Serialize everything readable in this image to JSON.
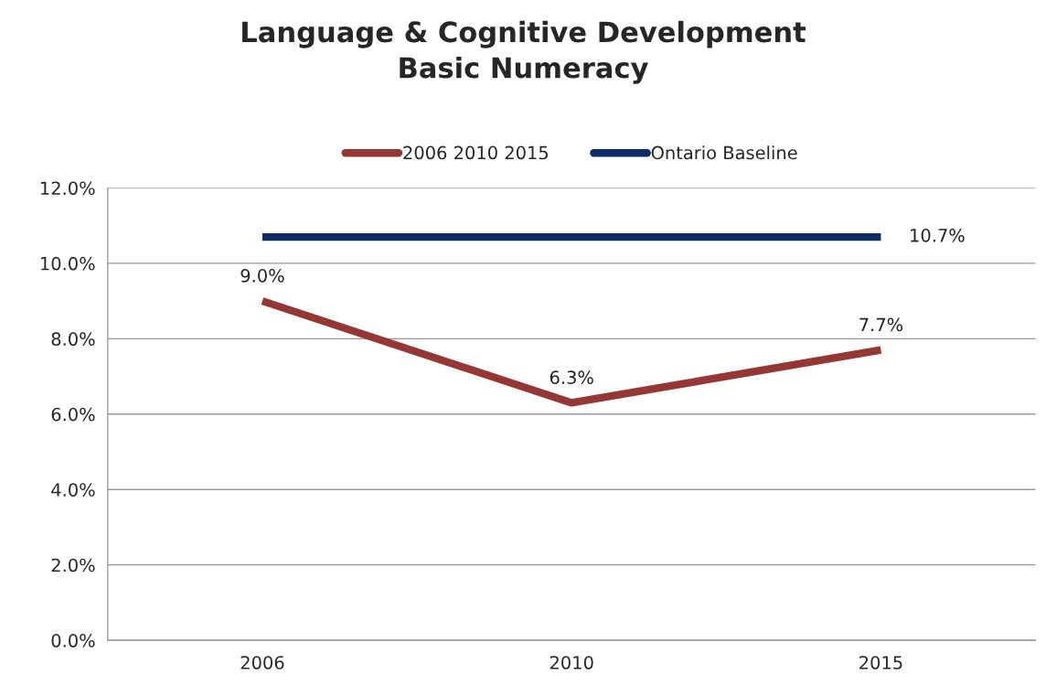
{
  "chart_data": {
    "type": "line",
    "title": "Language & Cognitive Development\nBasic Numeracy",
    "categories": [
      "2006",
      "2010",
      "2015"
    ],
    "series": [
      {
        "name": "2006 2010 2015",
        "color": "#953735",
        "values": [
          9.0,
          6.3,
          7.7
        ],
        "value_labels": [
          "9.0%",
          "6.3%",
          "7.7%"
        ]
      },
      {
        "name": "Ontario Baseline",
        "color": "#0e2c6a",
        "values": [
          10.7,
          10.7,
          10.7
        ],
        "value_labels": [
          null,
          null,
          "10.7%"
        ]
      }
    ],
    "ylim": [
      0,
      12
    ],
    "yticks": [
      {
        "value": 0,
        "label": "0.0%"
      },
      {
        "value": 2,
        "label": "2.0%"
      },
      {
        "value": 4,
        "label": "4.0%"
      },
      {
        "value": 6,
        "label": "6.0%"
      },
      {
        "value": 8,
        "label": "8.0%"
      },
      {
        "value": 10,
        "label": "10.0%"
      },
      {
        "value": 12,
        "label": "12.0%"
      }
    ],
    "grid": "y",
    "legend": "top",
    "marker": "none",
    "line_style": "solid"
  }
}
